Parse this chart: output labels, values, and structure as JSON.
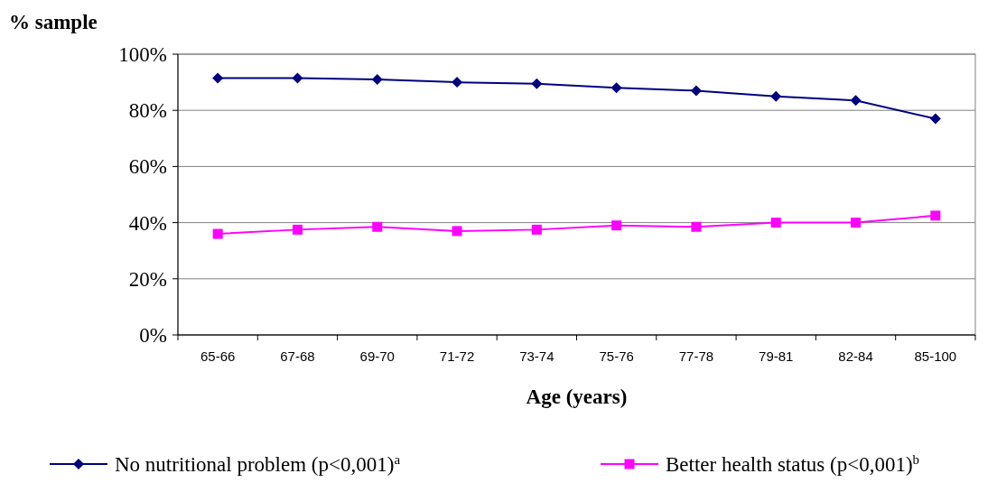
{
  "chart_data": {
    "type": "line",
    "ylabel": "% sample",
    "xlabel": "Age (years)",
    "categories": [
      "65-66",
      "67-68",
      "69-70",
      "71-72",
      "73-74",
      "75-76",
      "77-78",
      "79-81",
      "82-84",
      "85-100"
    ],
    "series": [
      {
        "name": "No nutritional problem (p<0,001)$^{a}$",
        "color": "#000080",
        "marker": "diamond",
        "values": [
          91.5,
          91.5,
          91,
          90,
          89.5,
          88,
          87,
          85,
          83.5,
          77
        ]
      },
      {
        "name": "Better health status (p<0,001)$^{b}$",
        "color": "#ff00ff",
        "marker": "square",
        "values": [
          36,
          37.5,
          38.5,
          37,
          37.5,
          39,
          38.5,
          40,
          40,
          42.5
        ]
      }
    ],
    "ylim": [
      0,
      100
    ],
    "yticks": [
      {
        "value": 0,
        "label": "0%"
      },
      {
        "value": 20,
        "label": "20%"
      },
      {
        "value": 40,
        "label": "40%"
      },
      {
        "value": 60,
        "label": "60%"
      },
      {
        "value": 80,
        "label": "80%"
      },
      {
        "value": 100,
        "label": "100%"
      }
    ],
    "grid": "y",
    "legend": "bottom"
  }
}
